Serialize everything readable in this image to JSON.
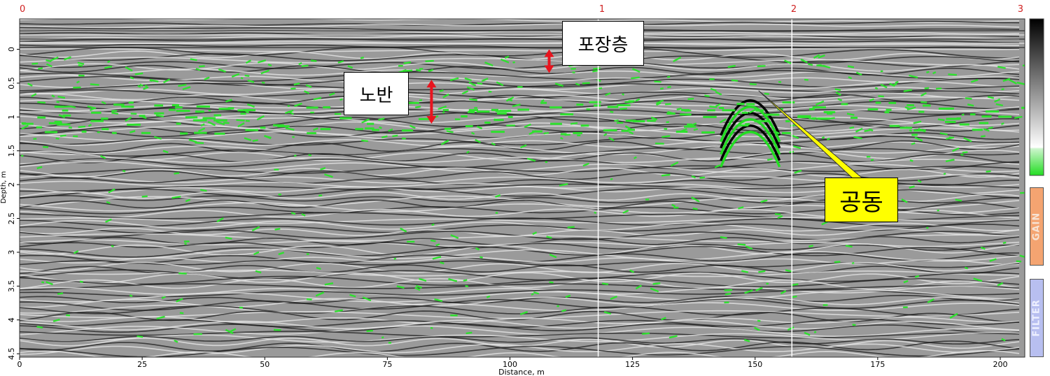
{
  "top_scale": {
    "labels": [
      "0",
      "1",
      "2",
      "3"
    ],
    "color": "#d02020"
  },
  "axes": {
    "ylabel": "Depth, m",
    "xlabel": "Distance, m",
    "y_ticks": [
      "0",
      "0.5",
      "1",
      "1.5",
      "2",
      "2.5",
      "3",
      "3.5",
      "4",
      "4.5"
    ],
    "x_ticks": [
      "0",
      "25",
      "50",
      "75",
      "100",
      "125",
      "150",
      "175",
      "200"
    ],
    "depth_range": [
      -0.45,
      4.55
    ],
    "distance_range": [
      0,
      205
    ],
    "marker_distances": [
      118,
      157.5
    ]
  },
  "annotations": {
    "pavement": "포장층",
    "bedrock": "노반",
    "cavity": "공동",
    "arrow_color": "#e8141e",
    "pavement_arrow": {
      "distance": 108,
      "depth_top": 0.0,
      "depth_bottom": 0.35
    },
    "bedrock_arrow": {
      "distance": 84,
      "depth_top": 0.45,
      "depth_bottom": 1.1
    },
    "cavity_pointer_target": {
      "distance": 149,
      "depth": 0.55
    }
  },
  "side_panel": {
    "colorbar_colors": [
      "#000000",
      "#ffffff",
      "#22dd22"
    ],
    "gain_label": "GAIN",
    "filter_label": "FILTER",
    "gain_color": "#f4a471",
    "filter_color": "#b8bff0"
  }
}
